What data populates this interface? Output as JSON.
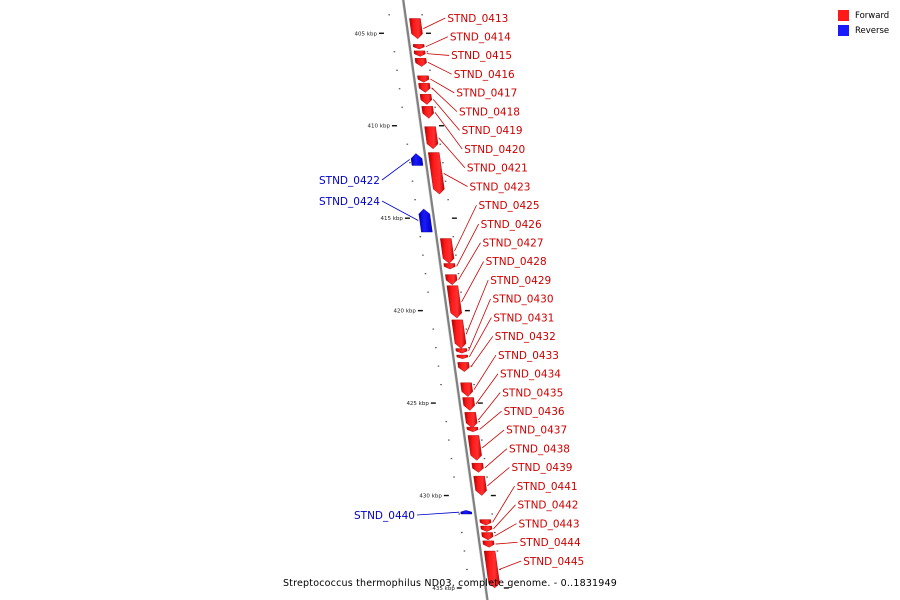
{
  "colors": {
    "forward": "#ff1a1a",
    "reverse": "#1a1aff",
    "axis": "#808080"
  },
  "legend": [
    {
      "label": "Forward",
      "color": "#ff1a1a"
    },
    {
      "label": "Reverse",
      "color": "#1a1aff"
    }
  ],
  "caption": "Streptococcus thermophilus ND03, complete genome. - 0..1831949",
  "ticks": [
    {
      "kbp": 405,
      "label": "405 kbp"
    },
    {
      "kbp": 410,
      "label": "410 kbp"
    },
    {
      "kbp": 415,
      "label": "415 kbp"
    },
    {
      "kbp": 420,
      "label": "420 kbp"
    },
    {
      "kbp": 425,
      "label": "425 kbp"
    },
    {
      "kbp": 430,
      "label": "430 kbp"
    },
    {
      "kbp": 435,
      "label": "435 kbp"
    }
  ],
  "genes": [
    {
      "name": "STND_0413",
      "strand": "forward",
      "start_kbp": 404.2,
      "end_kbp": 405.3
    },
    {
      "name": "STND_0414",
      "strand": "forward",
      "start_kbp": 405.6,
      "end_kbp": 405.85
    },
    {
      "name": "STND_0415",
      "strand": "forward",
      "start_kbp": 405.95,
      "end_kbp": 406.25
    },
    {
      "name": "STND_0416",
      "strand": "forward",
      "start_kbp": 406.35,
      "end_kbp": 406.8
    },
    {
      "name": "STND_0417",
      "strand": "forward",
      "start_kbp": 407.3,
      "end_kbp": 407.65
    },
    {
      "name": "STND_0418",
      "strand": "forward",
      "start_kbp": 407.7,
      "end_kbp": 408.2
    },
    {
      "name": "STND_0419",
      "strand": "forward",
      "start_kbp": 408.3,
      "end_kbp": 408.85
    },
    {
      "name": "STND_0420",
      "strand": "forward",
      "start_kbp": 408.95,
      "end_kbp": 409.6
    },
    {
      "name": "STND_0421",
      "strand": "forward",
      "start_kbp": 410.05,
      "end_kbp": 411.25
    },
    {
      "name": "STND_0422",
      "strand": "reverse",
      "start_kbp": 411.5,
      "end_kbp": 412.15
    },
    {
      "name": "STND_0423",
      "strand": "forward",
      "start_kbp": 411.45,
      "end_kbp": 413.7
    },
    {
      "name": "STND_0424",
      "strand": "reverse",
      "start_kbp": 414.5,
      "end_kbp": 415.75
    },
    {
      "name": "STND_0425",
      "strand": "forward",
      "start_kbp": 416.1,
      "end_kbp": 417.45
    },
    {
      "name": "STND_0426",
      "strand": "forward",
      "start_kbp": 417.45,
      "end_kbp": 417.75
    },
    {
      "name": "STND_0427",
      "strand": "forward",
      "start_kbp": 418.05,
      "end_kbp": 418.6
    },
    {
      "name": "STND_0428",
      "strand": "forward",
      "start_kbp": 418.65,
      "end_kbp": 420.4
    },
    {
      "name": "STND_0429",
      "strand": "forward",
      "start_kbp": 420.5,
      "end_kbp": 422.05
    },
    {
      "name": "STND_0430",
      "strand": "forward",
      "start_kbp": 422.05,
      "end_kbp": 422.3
    },
    {
      "name": "STND_0431",
      "strand": "forward",
      "start_kbp": 422.4,
      "end_kbp": 422.6
    },
    {
      "name": "STND_0432",
      "strand": "forward",
      "start_kbp": 422.8,
      "end_kbp": 423.3
    },
    {
      "name": "STND_0433",
      "strand": "forward",
      "start_kbp": 423.9,
      "end_kbp": 424.65
    },
    {
      "name": "STND_0434",
      "strand": "forward",
      "start_kbp": 424.7,
      "end_kbp": 425.4
    },
    {
      "name": "STND_0435",
      "strand": "forward",
      "start_kbp": 425.5,
      "end_kbp": 426.35
    },
    {
      "name": "STND_0436",
      "strand": "forward",
      "start_kbp": 426.3,
      "end_kbp": 426.55
    },
    {
      "name": "STND_0437",
      "strand": "forward",
      "start_kbp": 426.75,
      "end_kbp": 428.1
    },
    {
      "name": "STND_0438",
      "strand": "forward",
      "start_kbp": 428.25,
      "end_kbp": 428.75
    },
    {
      "name": "STND_0439",
      "strand": "forward",
      "start_kbp": 428.95,
      "end_kbp": 430.0
    },
    {
      "name": "STND_0440",
      "strand": "reverse",
      "start_kbp": 430.8,
      "end_kbp": 431.0
    },
    {
      "name": "STND_0441",
      "strand": "forward",
      "start_kbp": 431.3,
      "end_kbp": 431.6
    },
    {
      "name": "STND_0442",
      "strand": "forward",
      "start_kbp": 431.65,
      "end_kbp": 431.95
    },
    {
      "name": "STND_0443",
      "strand": "forward",
      "start_kbp": 432.0,
      "end_kbp": 432.4
    },
    {
      "name": "STND_0444",
      "strand": "forward",
      "start_kbp": 432.45,
      "end_kbp": 432.8
    },
    {
      "name": "STND_0445",
      "strand": "forward",
      "start_kbp": 433.0,
      "end_kbp": 435.0
    }
  ]
}
